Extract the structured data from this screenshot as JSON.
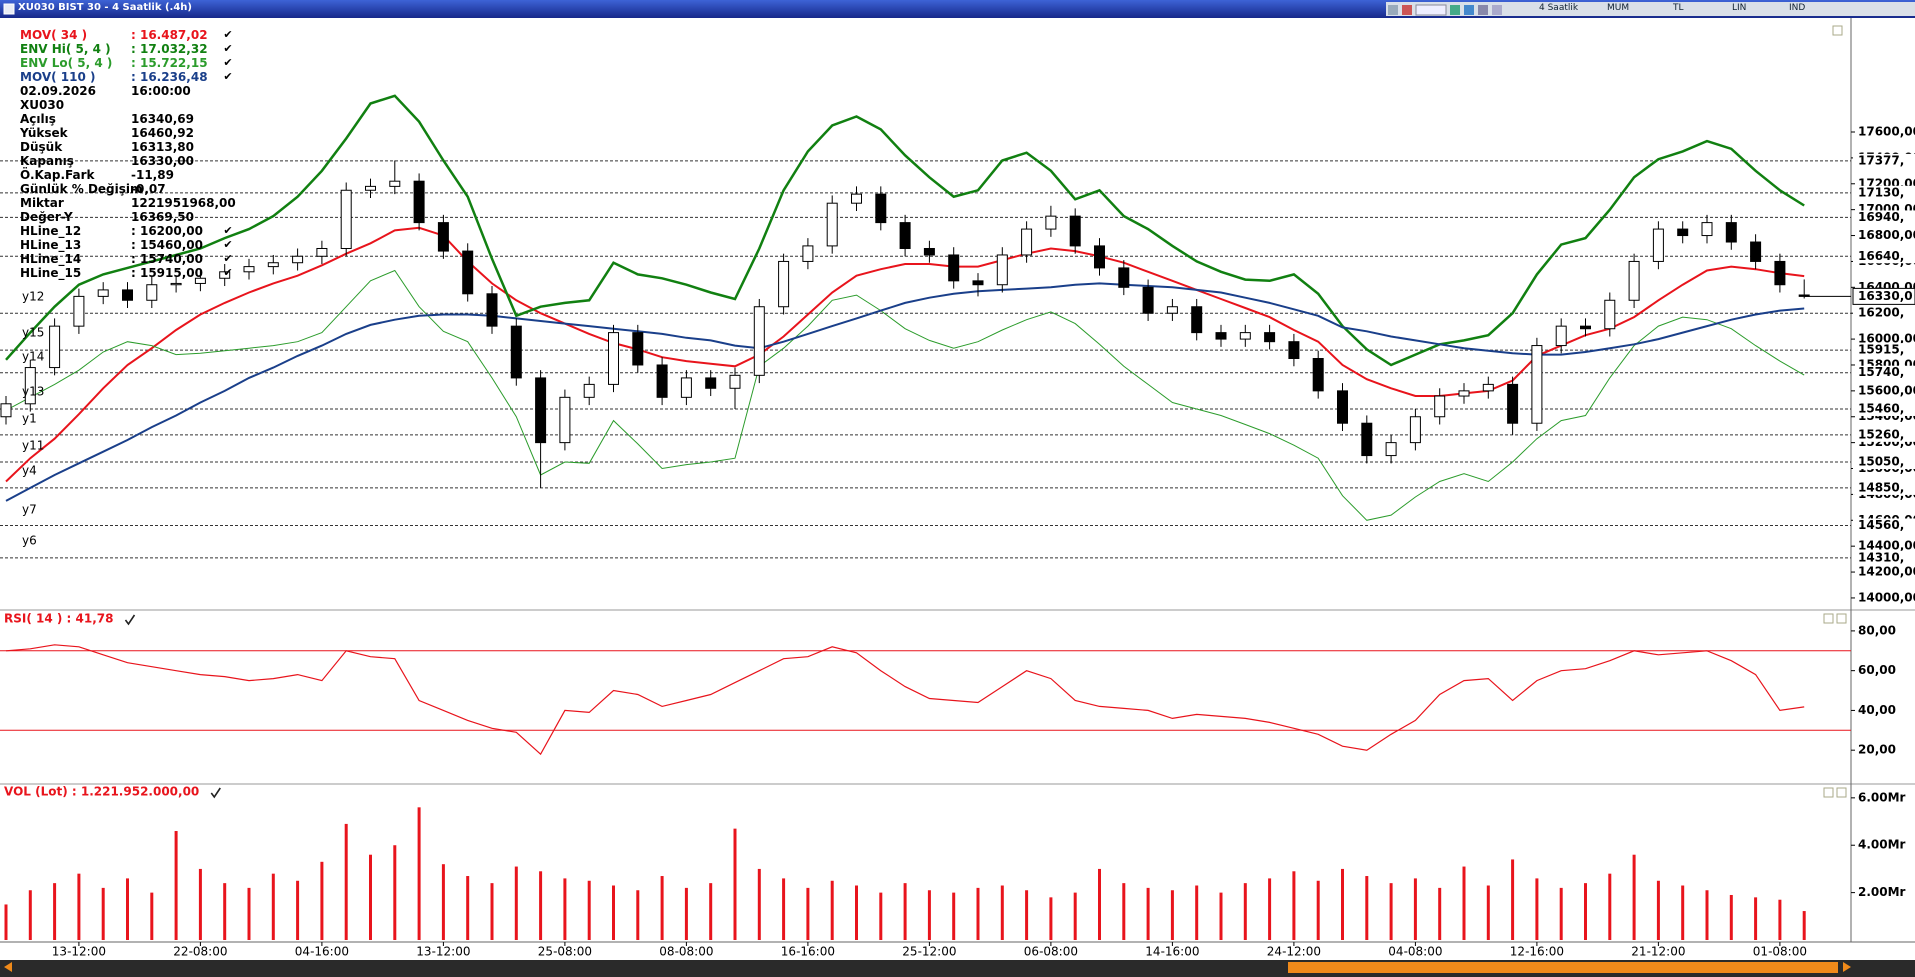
{
  "window": {
    "title": "XU030 BIST 30 - 4 Saatlik (.4h)",
    "toolbar": [
      "4 Saatlik",
      "MUM",
      "TL",
      "LIN",
      "IND"
    ]
  },
  "info_panel": {
    "rows": [
      {
        "label": "02.09.2026",
        "value": "16:00:00"
      },
      {
        "label": "XU030"
      },
      {
        "label": "Açılış",
        "value": "16340,69"
      },
      {
        "label": "Yüksek",
        "value": "16460,92"
      },
      {
        "label": "Düşük",
        "value": "16313,80"
      },
      {
        "label": "Kapanış",
        "value": "16330,00"
      },
      {
        "label": "Ö.Kap.Fark",
        "value": "-11,89"
      },
      {
        "label": "Günlük % Değişim",
        "value": "-0,07"
      },
      {
        "label": "Miktar",
        "value": "1221951968,00"
      },
      {
        "label": "Değer-Y",
        "value": "16369,50"
      },
      {
        "label": "HLine_12",
        "value": ": 16200,00",
        "check": true
      },
      {
        "label": "HLine_13",
        "value": ": 15460,00",
        "check": true
      },
      {
        "label": "HLine_14",
        "value": ": 15740,00",
        "check": true
      },
      {
        "label": "HLine_15",
        "value": ": 15915,00",
        "check": true
      }
    ]
  },
  "chart_data": [
    {
      "type": "candlestick",
      "categories": [
        null,
        null,
        null,
        "13-12:00",
        null,
        null,
        null,
        null,
        "22-08:00",
        null,
        null,
        null,
        null,
        "04-16:00",
        null,
        null,
        null,
        null,
        "13-12:00",
        null,
        null,
        null,
        null,
        "25-08:00",
        null,
        null,
        null,
        null,
        "08-08:00",
        null,
        null,
        null,
        null,
        "16-16:00",
        null,
        null,
        null,
        null,
        "25-12:00",
        null,
        null,
        null,
        null,
        "06-08:00",
        null,
        null,
        null,
        null,
        "14-16:00",
        null,
        null,
        null,
        null,
        "24-12:00",
        null,
        null,
        null,
        null,
        "04-08:00",
        null,
        null,
        null,
        null,
        "12-16:00",
        null,
        null,
        null,
        null,
        "21-12:00",
        null,
        null,
        null,
        null,
        "01-08:00",
        null
      ],
      "open": [
        15400,
        15500,
        15780,
        16100,
        16330,
        16380,
        16300,
        16420,
        16430,
        16470,
        16520,
        16560,
        16590,
        16640,
        16700,
        17150,
        17180,
        17220,
        16900,
        16680,
        16350,
        16100,
        15700,
        15200,
        15550,
        15650,
        16050,
        15800,
        15550,
        15700,
        15620,
        15720,
        16250,
        16600,
        16720,
        17050,
        17120,
        16900,
        16700,
        16650,
        16450,
        16420,
        16650,
        16850,
        16950,
        16720,
        16550,
        16400,
        16200,
        16250,
        16050,
        16000,
        16050,
        15980,
        15850,
        15600,
        15350,
        15100,
        15200,
        15400,
        15560,
        15600,
        15650,
        15350,
        15950,
        16100,
        16080,
        16300,
        16600,
        16850,
        16800,
        16900,
        16750,
        16600,
        16340.69
      ],
      "high": [
        15560,
        15840,
        16160,
        16390,
        16440,
        16440,
        16480,
        16490,
        16530,
        16580,
        16620,
        16650,
        16700,
        16760,
        17210,
        17240,
        17380,
        17280,
        16960,
        16740,
        16410,
        16160,
        15760,
        15610,
        15710,
        16110,
        16110,
        15860,
        15760,
        15760,
        15780,
        16310,
        16660,
        16780,
        17110,
        17180,
        17180,
        16960,
        16760,
        16710,
        16510,
        16710,
        16910,
        17030,
        17010,
        16780,
        16610,
        16460,
        16310,
        16310,
        16110,
        16110,
        16110,
        16040,
        15910,
        15660,
        15410,
        15260,
        15460,
        15620,
        15660,
        15710,
        15710,
        16010,
        16160,
        16160,
        16360,
        16660,
        16910,
        16910,
        16960,
        16960,
        16810,
        16660,
        16460.92
      ],
      "low": [
        15340,
        15440,
        15720,
        16040,
        16270,
        16240,
        16240,
        16360,
        16370,
        16410,
        16460,
        16500,
        16530,
        16580,
        16640,
        17090,
        17120,
        16840,
        16620,
        16290,
        16040,
        15640,
        14850,
        15140,
        15490,
        15590,
        15740,
        15490,
        15490,
        15560,
        15460,
        15660,
        16190,
        16540,
        16660,
        16990,
        16840,
        16640,
        16590,
        16390,
        16330,
        16360,
        16590,
        16790,
        16660,
        16490,
        16340,
        16140,
        16140,
        15990,
        15940,
        15940,
        15920,
        15790,
        15540,
        15290,
        15040,
        15040,
        15140,
        15340,
        15500,
        15540,
        15260,
        15290,
        15890,
        16020,
        16020,
        16240,
        16540,
        16740,
        16740,
        16690,
        16540,
        16360,
        16313.8
      ],
      "close": [
        15500,
        15780,
        16100,
        16330,
        16380,
        16300,
        16420,
        16430,
        16470,
        16520,
        16560,
        16590,
        16640,
        16700,
        17150,
        17180,
        17220,
        16900,
        16680,
        16350,
        16100,
        15700,
        15200,
        15550,
        15650,
        16050,
        15800,
        15550,
        15700,
        15620,
        15720,
        16250,
        16600,
        16720,
        17050,
        17120,
        16900,
        16700,
        16650,
        16450,
        16420,
        16650,
        16850,
        16950,
        16720,
        16550,
        16400,
        16200,
        16250,
        16050,
        16000,
        16050,
        15980,
        15850,
        15600,
        15350,
        15100,
        15200,
        15400,
        15560,
        15600,
        15650,
        15350,
        15950,
        16100,
        16080,
        16300,
        16600,
        16850,
        16800,
        16900,
        16750,
        16600,
        16420,
        16330
      ],
      "series": [
        {
          "name": "MOV( 34 )",
          "label_value": ": 16.487,02",
          "check": true,
          "color": "#e8141c",
          "width": 2,
          "values": [
            14900,
            15080,
            15230,
            15420,
            15620,
            15800,
            15930,
            16070,
            16190,
            16280,
            16360,
            16430,
            16490,
            16570,
            16660,
            16740,
            16840,
            16860,
            16800,
            16600,
            16430,
            16300,
            16200,
            16120,
            16040,
            15970,
            15920,
            15860,
            15830,
            15810,
            15790,
            15880,
            16020,
            16190,
            16360,
            16490,
            16540,
            16580,
            16580,
            16560,
            16560,
            16610,
            16660,
            16700,
            16680,
            16640,
            16590,
            16520,
            16450,
            16380,
            16310,
            16240,
            16170,
            16070,
            15980,
            15800,
            15690,
            15620,
            15560,
            15560,
            15580,
            15600,
            15680,
            15870,
            15950,
            16030,
            16080,
            16170,
            16300,
            16420,
            16530,
            16560,
            16540,
            16510,
            16487.02
          ]
        },
        {
          "name": "ENV Hi( 5, 4 )",
          "label_value": ": 17.032,32",
          "check": true,
          "color": "#118011",
          "width": 2.5,
          "values": [
            15840,
            16050,
            16250,
            16420,
            16500,
            16550,
            16600,
            16650,
            16700,
            16780,
            16850,
            16950,
            17100,
            17300,
            17550,
            17820,
            17880,
            17680,
            17380,
            17100,
            16620,
            16180,
            16250,
            16280,
            16300,
            16590,
            16500,
            16470,
            16420,
            16360,
            16310,
            16700,
            17150,
            17450,
            17650,
            17720,
            17620,
            17420,
            17250,
            17100,
            17150,
            17380,
            17440,
            17300,
            17080,
            17150,
            16950,
            16850,
            16720,
            16600,
            16520,
            16460,
            16450,
            16500,
            16350,
            16100,
            15920,
            15800,
            15880,
            15960,
            15990,
            16030,
            16200,
            16500,
            16730,
            16780,
            17000,
            17250,
            17390,
            17450,
            17530,
            17470,
            17300,
            17150,
            17032.32
          ]
        },
        {
          "name": "ENV Lo( 5, 4 )",
          "label_value": ": 15.722,15",
          "check": true,
          "color": "#2c9c2c",
          "width": 1,
          "values": [
            15450,
            15550,
            15650,
            15760,
            15900,
            15980,
            15950,
            15880,
            15890,
            15910,
            15930,
            15950,
            15980,
            16050,
            16250,
            16450,
            16530,
            16250,
            16060,
            15980,
            15700,
            15400,
            14950,
            15050,
            15040,
            15370,
            15190,
            15000,
            15030,
            15050,
            15080,
            15790,
            15930,
            16100,
            16300,
            16340,
            16220,
            16080,
            15990,
            15930,
            15980,
            16070,
            16150,
            16210,
            16120,
            15960,
            15790,
            15650,
            15510,
            15460,
            15410,
            15340,
            15270,
            15180,
            15080,
            14790,
            14600,
            14640,
            14780,
            14900,
            14960,
            14900,
            15050,
            15230,
            15370,
            15410,
            15700,
            15950,
            16100,
            16170,
            16150,
            16080,
            15950,
            15830,
            15722.15
          ]
        },
        {
          "name": "MOV( 110 )",
          "label_value": ": 16.236,48",
          "check": true,
          "color": "#1a3f8a",
          "width": 2,
          "values": [
            14750,
            14850,
            14950,
            15040,
            15130,
            15220,
            15320,
            15410,
            15510,
            15600,
            15700,
            15780,
            15870,
            15950,
            16040,
            16110,
            16150,
            16180,
            16190,
            16190,
            16180,
            16160,
            16140,
            16120,
            16100,
            16080,
            16060,
            16040,
            16010,
            15990,
            15950,
            15930,
            15980,
            16040,
            16100,
            16160,
            16220,
            16280,
            16320,
            16350,
            16370,
            16380,
            16390,
            16400,
            16420,
            16430,
            16420,
            16410,
            16400,
            16380,
            16360,
            16320,
            16280,
            16230,
            16180,
            16090,
            16060,
            16020,
            15990,
            15960,
            15930,
            15910,
            15890,
            15880,
            15880,
            15900,
            15930,
            15960,
            16000,
            16050,
            16100,
            16150,
            16190,
            16220,
            16236.48
          ]
        }
      ],
      "hlines": [
        {
          "value": 17377,
          "label": "17377,"
        },
        {
          "value": 17130,
          "label": "17130,"
        },
        {
          "value": 16940,
          "label": "16940,"
        },
        {
          "value": 16640,
          "label": "16640,"
        },
        {
          "value": 16200,
          "label": "16200,"
        },
        {
          "value": 15915,
          "label": "15915,"
        },
        {
          "value": 15740,
          "label": "15740,"
        },
        {
          "value": 15460,
          "label": "15460,"
        },
        {
          "value": 15260,
          "label": "15260,"
        },
        {
          "value": 15050,
          "label": "15050,"
        },
        {
          "value": 14850,
          "label": "14850,"
        },
        {
          "value": 14560,
          "label": "14560,"
        },
        {
          "value": 14310,
          "label": "14310,"
        }
      ],
      "last_price": {
        "value": 16330,
        "label": "16330,0"
      },
      "line_labels": [
        "y12",
        "y15",
        "y14",
        "y13",
        "y1",
        "y11",
        "y4",
        "y7",
        "y6"
      ],
      "ylim": [
        13930,
        18450
      ],
      "yticks": [
        {
          "value": 14000,
          "label": "14000,00"
        },
        {
          "value": 14200,
          "label": "14200,00"
        },
        {
          "value": 14400,
          "label": "14400,00"
        },
        {
          "value": 14600,
          "label": "14600,00"
        },
        {
          "value": 14800,
          "label": "14800,00"
        },
        {
          "value": 15000,
          "label": "15000,00"
        },
        {
          "value": 15200,
          "label": "15200,00"
        },
        {
          "value": 15400,
          "label": "15400,00"
        },
        {
          "value": 15600,
          "label": "15600,00"
        },
        {
          "value": 15800,
          "label": "15800,00"
        },
        {
          "value": 16000,
          "label": "16000,00"
        },
        {
          "value": 16200,
          "label": "16200,00"
        },
        {
          "value": 16400,
          "label": "16400,00"
        },
        {
          "value": 16600,
          "label": "16600,00"
        },
        {
          "value": 16800,
          "label": "16800,00"
        },
        {
          "value": 17000,
          "label": "17000,00"
        },
        {
          "value": 17200,
          "label": "17200,00"
        },
        {
          "value": 17400,
          "label": "17400,00"
        },
        {
          "value": 17600,
          "label": "17600,00"
        }
      ]
    },
    {
      "type": "line",
      "title": "RSI( 14 ) : 41,78",
      "title_color": "#e8141c",
      "color": "#e8141c",
      "levels": [
        70,
        30
      ],
      "values": [
        70,
        71,
        73,
        72,
        68,
        64,
        62,
        60,
        58,
        57,
        55,
        56,
        58,
        55,
        70,
        67,
        66,
        45,
        40,
        35,
        31,
        29,
        18,
        40,
        39,
        50,
        48,
        42,
        45,
        48,
        54,
        60,
        66,
        67,
        72,
        69,
        60,
        52,
        46,
        45,
        44,
        52,
        60,
        56,
        45,
        42,
        41,
        40,
        36,
        38,
        37,
        36,
        34,
        31,
        28,
        22,
        20,
        28,
        35,
        48,
        55,
        56,
        45,
        55,
        60,
        61,
        65,
        70,
        68,
        69,
        70,
        65,
        58,
        40,
        41.78
      ],
      "ylim": [
        4,
        89
      ],
      "yticks": [
        {
          "value": 20,
          "label": "20,00"
        },
        {
          "value": 40,
          "label": "40,00"
        },
        {
          "value": 60,
          "label": "60,00"
        },
        {
          "value": 80,
          "label": "80,00"
        }
      ]
    },
    {
      "type": "bar",
      "title": "VOL (Lot) : 1.221.952.000,00",
      "title_color": "#e8141c",
      "color": "#e8141c",
      "values": [
        1.5,
        2.1,
        2.4,
        2.8,
        2.2,
        2.6,
        2.0,
        4.6,
        3.0,
        2.4,
        2.2,
        2.8,
        2.5,
        3.3,
        4.9,
        3.6,
        4.0,
        5.6,
        3.2,
        2.7,
        2.4,
        3.1,
        2.9,
        2.6,
        2.5,
        2.3,
        2.1,
        2.7,
        2.2,
        2.4,
        4.7,
        3.0,
        2.6,
        2.2,
        2.5,
        2.3,
        2.0,
        2.4,
        2.1,
        2.0,
        2.2,
        2.3,
        2.1,
        1.8,
        2.0,
        3.0,
        2.4,
        2.2,
        2.1,
        2.3,
        2.0,
        2.4,
        2.6,
        2.9,
        2.5,
        3.0,
        2.7,
        2.4,
        2.6,
        2.2,
        3.1,
        2.3,
        3.4,
        2.6,
        2.2,
        2.4,
        2.8,
        3.6,
        2.5,
        2.3,
        2.1,
        1.9,
        1.8,
        1.7,
        1.221952
      ],
      "ylim": [
        0,
        6.5
      ],
      "yticks": [
        {
          "value": 2,
          "label": "2.00Mr"
        },
        {
          "value": 4,
          "label": "4.00Mr"
        },
        {
          "value": 6,
          "label": "6.00Mr"
        }
      ]
    }
  ]
}
